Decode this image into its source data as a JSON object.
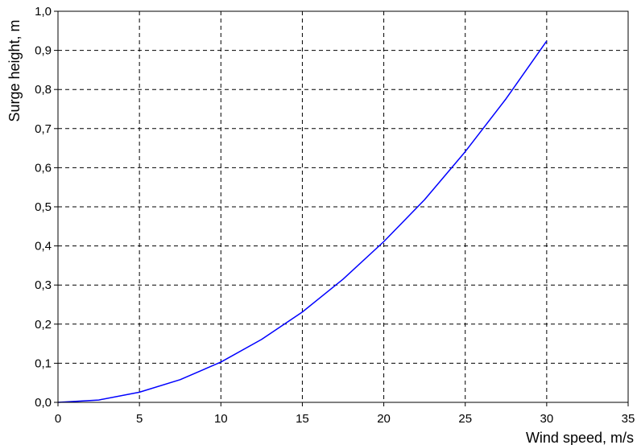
{
  "chart_data": {
    "type": "line",
    "title": "",
    "xlabel": "Wind speed, m/s",
    "ylabel": "Surge height, m",
    "xlim": [
      0,
      35
    ],
    "ylim": [
      0,
      1.0
    ],
    "x_ticks": [
      "0",
      "5",
      "10",
      "15",
      "20",
      "25",
      "30",
      "35"
    ],
    "y_ticks": [
      "0,0",
      "0,1",
      "0,2",
      "0,3",
      "0,4",
      "0,5",
      "0,6",
      "0,7",
      "0,8",
      "0,9",
      "1,0"
    ],
    "grid": true,
    "legend": "none",
    "series": [
      {
        "color": "#0000ff",
        "x": [
          0,
          2.5,
          5,
          7.5,
          10,
          12.5,
          15,
          17.5,
          20,
          22.5,
          25,
          27.5,
          30
        ],
        "y": [
          0.0,
          0.006,
          0.026,
          0.058,
          0.103,
          0.161,
          0.231,
          0.315,
          0.411,
          0.518,
          0.641,
          0.776,
          0.924
        ]
      }
    ]
  }
}
